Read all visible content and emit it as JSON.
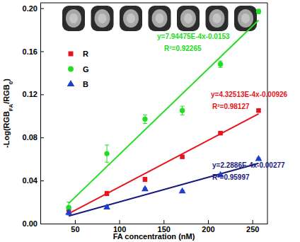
{
  "chart_data": {
    "type": "scatter",
    "xlabel": "FA concentration (nM)",
    "ylabel": [
      "-Log(RGB",
      "FA",
      "/RGB",
      "0",
      ")"
    ],
    "xlim": [
      11,
      267
    ],
    "ylim": [
      0,
      0.205
    ],
    "xticks": [
      50,
      100,
      150,
      200,
      250
    ],
    "yticks": [
      {
        "value": 0,
        "label": "0.00"
      },
      0.04,
      0.08,
      0.12,
      0.16,
      {
        "value": 0.2,
        "label": "0.20"
      }
    ],
    "grid": false,
    "legend": "upper left",
    "series": [
      {
        "name": "R",
        "type": "scatter",
        "marker": "square",
        "color": "#e8141b",
        "x": [
          43,
          86,
          129,
          171,
          214,
          257
        ],
        "values": [
          0.013,
          0.028,
          0.041,
          0.062,
          0.084,
          0.105
        ],
        "errors": [
          0.003,
          0.002,
          0.002,
          0.001,
          0.001,
          0.001
        ]
      },
      {
        "name": "G",
        "type": "scatter",
        "marker": "circle",
        "color": "#22dd22",
        "x": [
          43,
          86,
          129,
          171,
          214,
          257
        ],
        "values": [
          0.015,
          0.065,
          0.097,
          0.105,
          0.148,
          0.197
        ],
        "errors": [
          0.005,
          0.008,
          0.004,
          0.004,
          0.003,
          0.002
        ]
      },
      {
        "name": "B",
        "type": "scatter",
        "marker": "triangle",
        "color": "#1c3fd0",
        "x": [
          43,
          86,
          129,
          171,
          214,
          257
        ],
        "values": [
          0.01,
          0.015,
          0.032,
          0.03,
          0.045,
          0.06
        ],
        "errors": [
          0.002,
          0.001,
          0.001,
          0.001,
          0.001,
          0.001
        ]
      },
      {
        "type": "line",
        "color": "#e8141b",
        "x": [
          43,
          257
        ],
        "values": [
          0.0093,
          0.1019
        ]
      },
      {
        "type": "line",
        "color": "#22dd22",
        "x": [
          43,
          257
        ],
        "values": [
          0.0188,
          0.1889
        ]
      },
      {
        "type": "line",
        "color": "#1a1a80",
        "x": [
          43,
          257
        ],
        "values": [
          0.0071,
          0.056
        ]
      }
    ],
    "annotations": [
      {
        "text": "y=7.94475E-4x-0.0153",
        "color": "#22dd22"
      },
      {
        "text": "R²=0.92265",
        "color": "#22dd22"
      },
      {
        "text": "y=4.32513E-4x-0.00926",
        "color": "#e8141b"
      },
      {
        "text": "R²=0.98127",
        "color": "#e8141b"
      },
      {
        "text": "y=2.2886E-4x-0.00277",
        "color": "#1a1a80"
      },
      {
        "text": "R²=0.95997",
        "color": "#1a1a80"
      }
    ]
  }
}
